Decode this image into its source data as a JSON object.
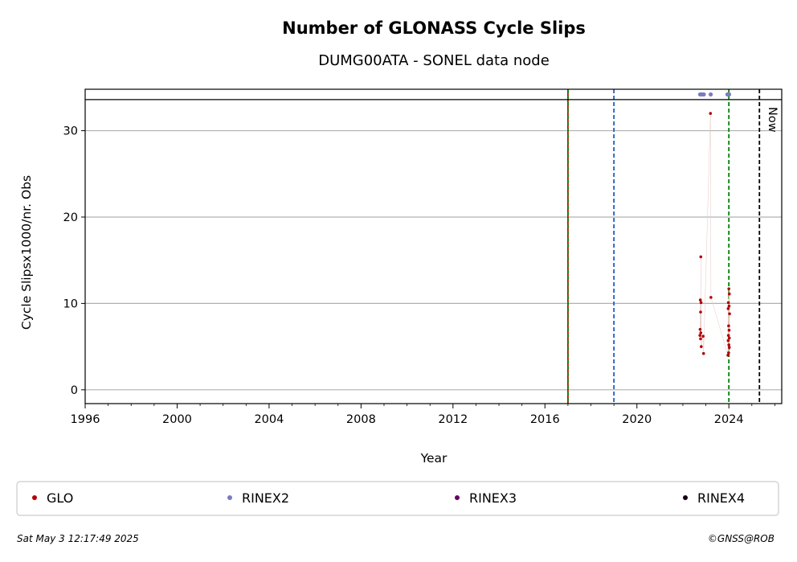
{
  "chart_data": {
    "type": "scatter",
    "title": "Number of GLONASS Cycle Slips",
    "subtitle": "DUMG00ATA - SONEL data node",
    "xlabel": "Year",
    "ylabel": "Cycle Slipsx1000/nr. Obs",
    "xlim": [
      1996,
      2026.3
    ],
    "ylim": [
      -1.6,
      34.8
    ],
    "xticks": [
      1996,
      2000,
      2004,
      2008,
      2012,
      2016,
      2020,
      2024
    ],
    "xtick_labels": [
      "1996",
      "2000",
      "2004",
      "2008",
      "2012",
      "2016",
      "2020",
      "2024"
    ],
    "yticks": [
      0,
      10,
      20,
      30
    ],
    "ytick_labels": [
      "0",
      "10",
      "20",
      "30"
    ],
    "grid": "horizontal",
    "top_band_y": 33.6,
    "vlines": [
      {
        "x": 2017.0,
        "color": "#008000",
        "style": "dashed",
        "overlay_color": "#cc0000"
      },
      {
        "x": 2019.0,
        "color": "#1f5fbf",
        "style": "dashed"
      },
      {
        "x": 2024.0,
        "color": "#008000",
        "style": "dashed"
      },
      {
        "x": 2025.33,
        "color": "#000000",
        "style": "dashed",
        "label": "Now"
      }
    ],
    "series": [
      {
        "name": "GLO",
        "color": "#b30000",
        "points": [
          [
            2022.78,
            15.4
          ],
          [
            2022.76,
            10.4
          ],
          [
            2022.79,
            10.1
          ],
          [
            2022.77,
            9.0
          ],
          [
            2022.75,
            7.0
          ],
          [
            2022.78,
            6.6
          ],
          [
            2022.74,
            6.3
          ],
          [
            2022.88,
            6.2
          ],
          [
            2022.77,
            5.9
          ],
          [
            2022.8,
            5.0
          ],
          [
            2022.9,
            4.2
          ],
          [
            2023.2,
            32.0
          ],
          [
            2023.22,
            10.7
          ],
          [
            2024.0,
            11.7
          ],
          [
            2024.02,
            11.1
          ],
          [
            2023.98,
            10.1
          ],
          [
            2024.01,
            9.7
          ],
          [
            2023.97,
            9.4
          ],
          [
            2024.03,
            8.8
          ],
          [
            2023.99,
            7.4
          ],
          [
            2024.01,
            6.9
          ],
          [
            2023.98,
            6.3
          ],
          [
            2024.02,
            6.0
          ],
          [
            2023.97,
            5.7
          ],
          [
            2024.0,
            5.2
          ],
          [
            2024.02,
            4.9
          ],
          [
            2023.99,
            4.3
          ],
          [
            2023.96,
            4.0
          ]
        ]
      },
      {
        "name": "RINEX2",
        "color": "#7b7bbf",
        "points": [
          [
            2022.75,
            34.2
          ],
          [
            2022.79,
            34.2
          ],
          [
            2022.84,
            34.2
          ],
          [
            2022.91,
            34.2
          ],
          [
            2023.21,
            34.2
          ],
          [
            2023.94,
            34.2
          ],
          [
            2023.98,
            34.2
          ],
          [
            2024.01,
            34.2
          ]
        ]
      },
      {
        "name": "RINEX3",
        "color": "#660066",
        "points": []
      },
      {
        "name": "RINEX4",
        "color": "#140014",
        "points": []
      }
    ]
  },
  "footer": {
    "date": "Sat May  3 12:17:49 2025",
    "credit": "©GNSS@ROB"
  }
}
